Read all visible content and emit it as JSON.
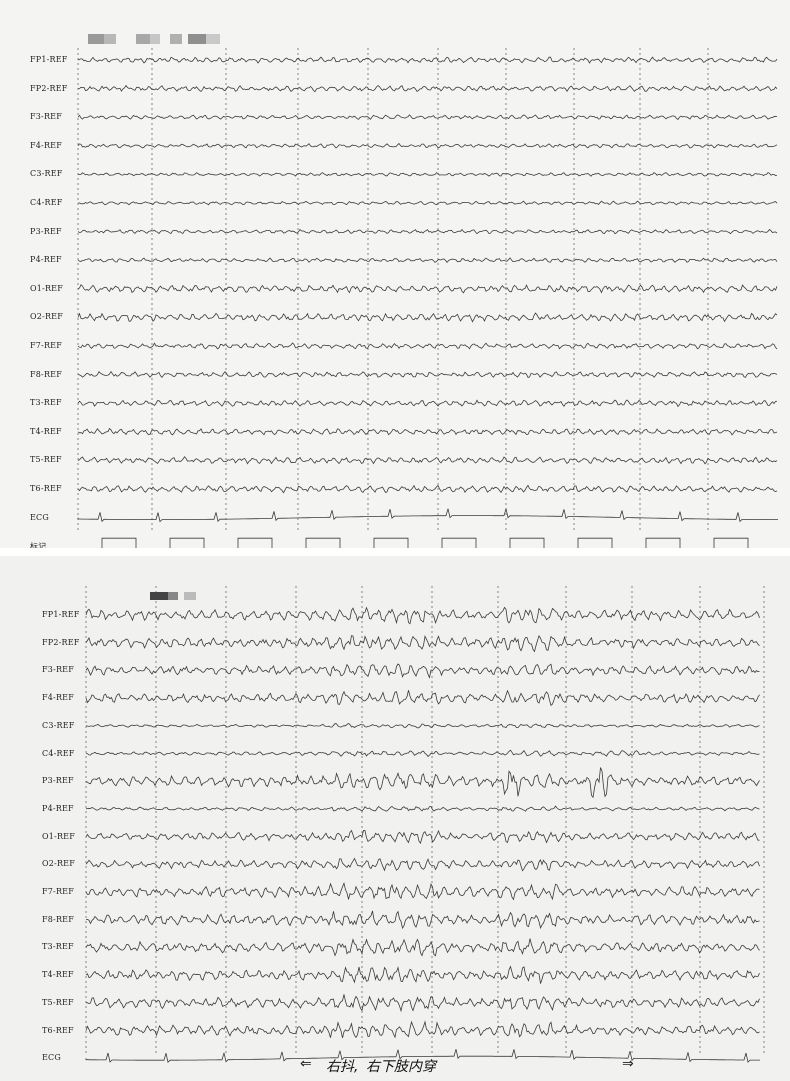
{
  "top_sheet": {
    "channel_labels": [
      "FP1-REF",
      "FP2-REF",
      "F3-REF",
      "F4-REF",
      "C3-REF",
      "C4-REF",
      "P3-REF",
      "P4-REF",
      "O1-REF",
      "O2-REF",
      "F7-REF",
      "F8-REF",
      "T3-REF",
      "T4-REF",
      "T5-REF",
      "T6-REF",
      "ECG",
      "标记"
    ]
  },
  "bottom_sheet": {
    "channel_labels": [
      "FP1-REF",
      "FP2-REF",
      "F3-REF",
      "F4-REF",
      "C3-REF",
      "C4-REF",
      "P3-REF",
      "P4-REF",
      "O1-REF",
      "O2-REF",
      "F7-REF",
      "F8-REF",
      "T3-REF",
      "T4-REF",
      "T5-REF",
      "T6-REF",
      "ECG"
    ],
    "annotation": "右下肢内穿",
    "annotation_prefix": "右抖,",
    "arrow_left": "⇐",
    "arrow_right": "⇒"
  },
  "colors": {
    "trace": "#3a3a3a",
    "paper": "#f3f3f1",
    "grid": "#555555"
  }
}
